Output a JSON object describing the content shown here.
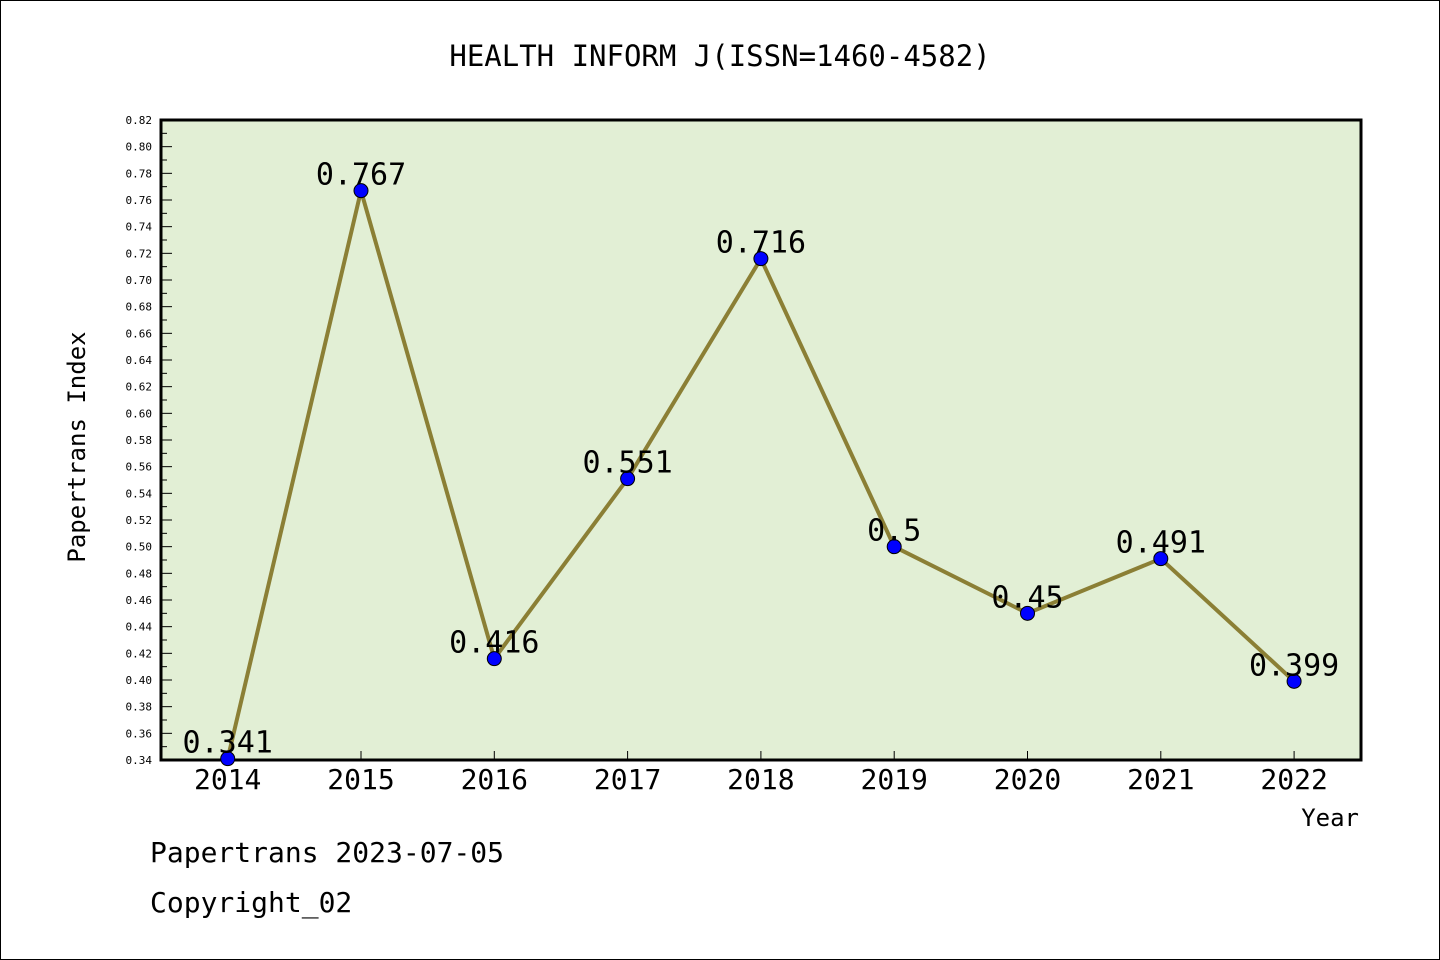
{
  "chart_data": {
    "type": "line",
    "title": "HEALTH INFORM J(ISSN=1460-4582)",
    "xlabel": "Year",
    "ylabel": "Papertrans Index",
    "categories": [
      "2014",
      "2015",
      "2016",
      "2017",
      "2018",
      "2019",
      "2020",
      "2021",
      "2022"
    ],
    "series": [
      {
        "values": [
          0.341,
          0.767,
          0.416,
          0.551,
          0.716,
          0.5,
          0.45,
          0.491,
          0.399
        ],
        "data_labels": [
          "0.341",
          "0.767",
          "0.416",
          "0.551",
          "0.716",
          "0.5",
          "0.45",
          "0.491",
          "0.399"
        ]
      }
    ],
    "ylim": [
      0.34,
      0.82
    ],
    "yticks": [
      "0.34",
      "0.36",
      "0.38",
      "0.40",
      "0.42",
      "0.44",
      "0.46",
      "0.48",
      "0.50",
      "0.52",
      "0.54",
      "0.56",
      "0.58",
      "0.60",
      "0.62",
      "0.64",
      "0.66",
      "0.68",
      "0.70",
      "0.72",
      "0.74",
      "0.76",
      "0.78",
      "0.80",
      "0.82"
    ],
    "grid": false,
    "colors": {
      "plot_background": "#e2efd5",
      "line": "#8b7f35",
      "marker": "#0000ff"
    }
  },
  "footer": {
    "date_line": "Papertrans 2023-07-05",
    "copyright": "Copyright_02"
  }
}
